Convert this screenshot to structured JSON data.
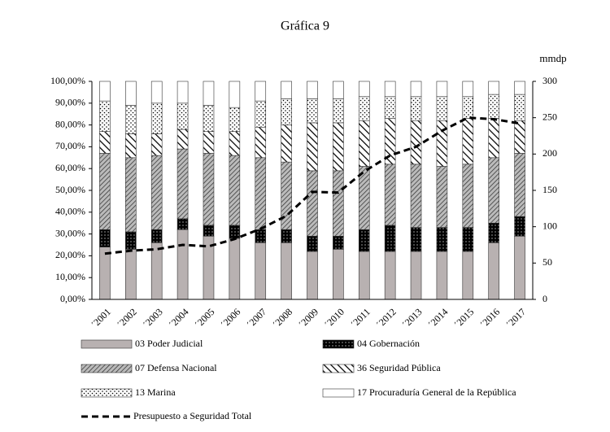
{
  "chart_data": {
    "type": "bar",
    "stacked": true,
    "title": "Gráfica 9",
    "y2_label": "mmdp",
    "categories": [
      "´2001",
      "´2002",
      "´2003",
      "´2004",
      "´2005",
      "´2006",
      "´2007",
      "´2008",
      "´2009",
      "´2010",
      "´2011",
      "´2012",
      "´2013",
      "´2014",
      "´2015",
      "´2016",
      "´2017"
    ],
    "series": [
      {
        "name": "03 Poder Judicial",
        "color": "#b8b1b1",
        "values": [
          24,
          23,
          26,
          32,
          29,
          28,
          26,
          26,
          22,
          23,
          22,
          22,
          22,
          22,
          22,
          26,
          29
        ]
      },
      {
        "name": "04 Gobernación",
        "color": "#000000",
        "values": [
          8,
          8,
          6,
          5,
          5,
          6,
          6,
          6,
          7,
          6,
          10,
          12,
          11,
          11,
          11,
          9,
          9
        ]
      },
      {
        "name": "07 Defensa Nacional",
        "color": "#777777",
        "values": [
          35,
          34,
          34,
          32,
          33,
          32,
          33,
          31,
          30,
          30,
          29,
          28,
          29,
          28,
          29,
          30,
          29
        ]
      },
      {
        "name": "36 Seguridad Pública",
        "color": "#222222",
        "values": [
          10,
          11,
          10,
          9,
          10,
          11,
          14,
          17,
          22,
          22,
          21,
          21,
          20,
          21,
          21,
          18,
          15
        ]
      },
      {
        "name": "13 Marina",
        "color": "#555555",
        "values": [
          14,
          13,
          14,
          12,
          12,
          11,
          12,
          12,
          11,
          11,
          11,
          10,
          11,
          11,
          10,
          11,
          12
        ]
      },
      {
        "name": "17 Procuraduría General de la República",
        "color": "#ffffff",
        "values": [
          9,
          11,
          10,
          10,
          11,
          12,
          9,
          8,
          8,
          8,
          7,
          7,
          7,
          7,
          7,
          6,
          6
        ]
      },
      {
        "name": "Presupuesto a Seguridad Total",
        "color": "#000000",
        "type": "line",
        "axis": "y2",
        "values": [
          63,
          67,
          69,
          75,
          73,
          83,
          97,
          115,
          148,
          147,
          176,
          198,
          210,
          232,
          250,
          248,
          242
        ]
      }
    ],
    "ylim": [
      0,
      100
    ],
    "yticks": [
      {
        "value": 0,
        "label": "0,00%"
      },
      {
        "value": 10,
        "label": "10,00%"
      },
      {
        "value": 20,
        "label": "20,00%"
      },
      {
        "value": 30,
        "label": "30,00%"
      },
      {
        "value": 40,
        "label": "40,00%"
      },
      {
        "value": 50,
        "label": "50,00%"
      },
      {
        "value": 60,
        "label": "60,00%"
      },
      {
        "value": 70,
        "label": "70,00%"
      },
      {
        "value": 80,
        "label": "80,00%"
      },
      {
        "value": 90,
        "label": "90,00%"
      },
      {
        "value": 100,
        "label": "100,00%"
      }
    ],
    "y2lim": [
      0,
      300
    ],
    "y2ticks": [
      0,
      50,
      100,
      150,
      200,
      250,
      300
    ]
  }
}
